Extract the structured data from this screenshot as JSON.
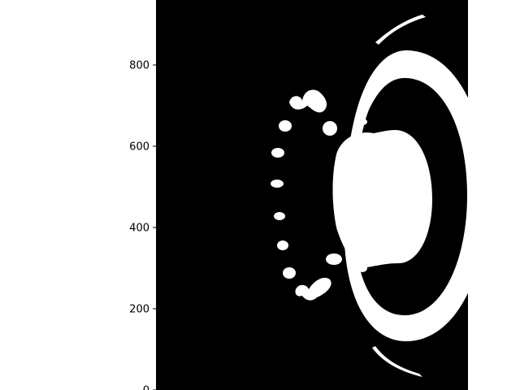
{
  "figure": {
    "background": "#ffffff",
    "image_foreground": "#ffffff",
    "image_background": "#000000",
    "y_axis": {
      "ticks": [
        {
          "value": 0,
          "label": "0"
        },
        {
          "value": 200,
          "label": "200"
        },
        {
          "value": 400,
          "label": "400"
        },
        {
          "value": 600,
          "label": "600"
        },
        {
          "value": 800,
          "label": "800"
        }
      ]
    }
  }
}
